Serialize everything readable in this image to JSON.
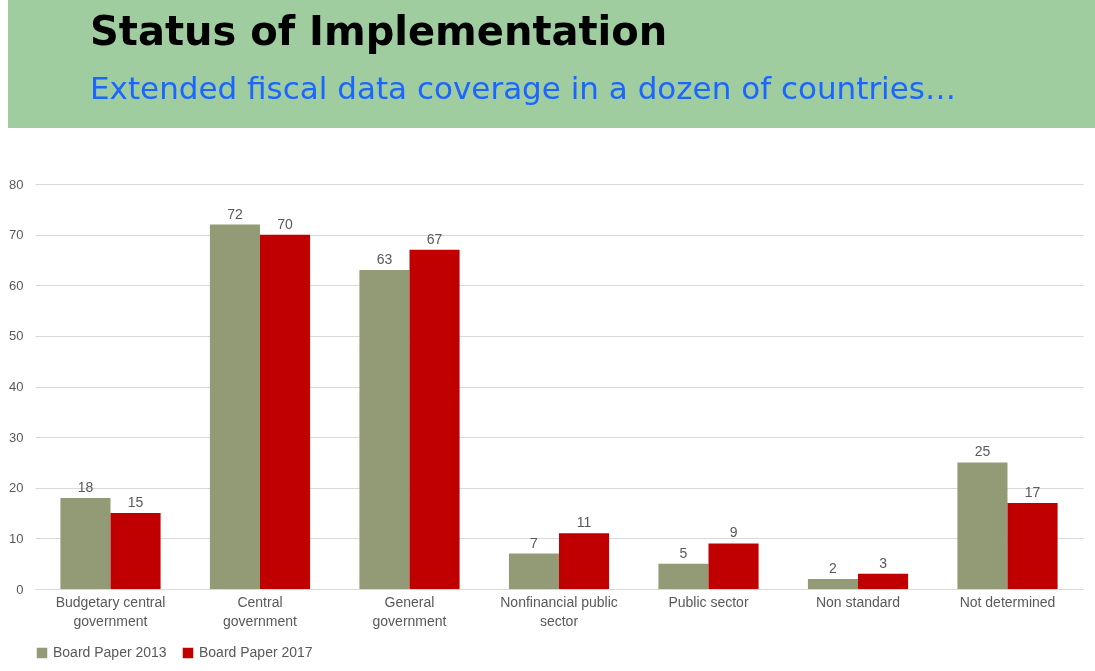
{
  "chart_data": {
    "type": "bar",
    "title": "Status of Implementation",
    "subtitle": "Extended fiscal data coverage in a dozen of countries…",
    "categories": [
      "Budgetary central government",
      "Central government",
      "General government",
      "Nonfinancial public sector",
      "Public sector",
      "Non standard",
      "Not determined"
    ],
    "series": [
      {
        "name": "Board Paper 2013",
        "color": "#939b76",
        "values": [
          18,
          72,
          63,
          7,
          5,
          2,
          25
        ]
      },
      {
        "name": "Board Paper 2017",
        "color": "#c00000",
        "values": [
          15,
          70,
          67,
          11,
          9,
          3,
          17
        ]
      }
    ],
    "ylim": [
      0,
      80
    ],
    "yticks": [
      0,
      10,
      20,
      30,
      40,
      50,
      60,
      70,
      80
    ],
    "grid": "y",
    "legend": "bottom",
    "data_labels": true
  }
}
